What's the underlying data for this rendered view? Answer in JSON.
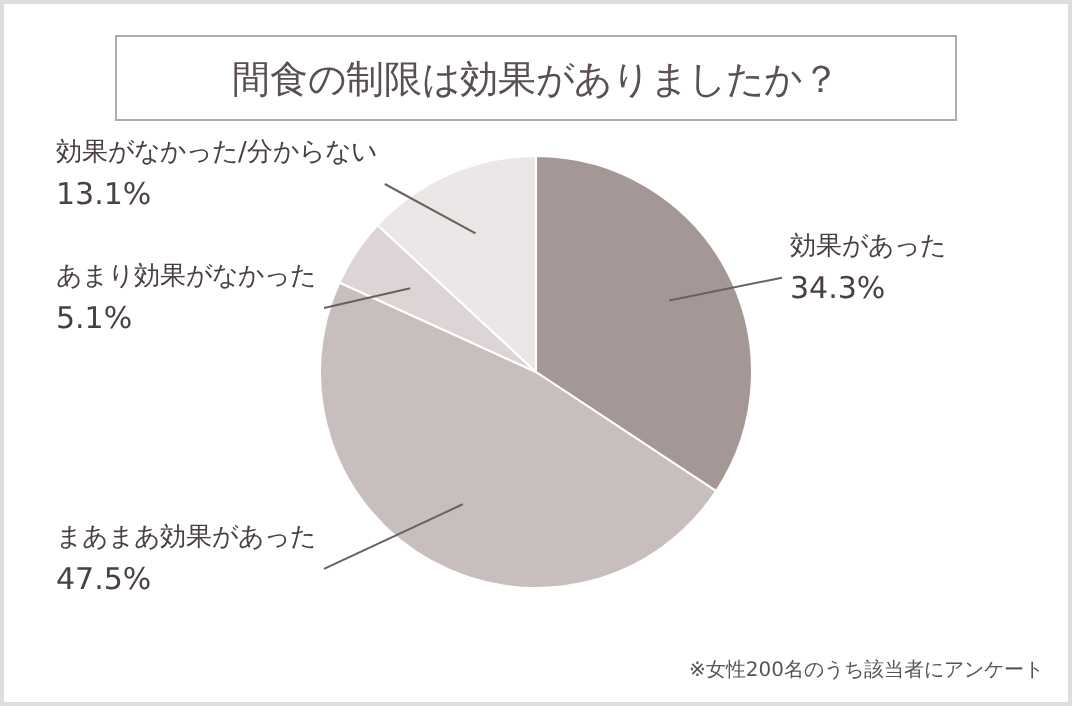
{
  "chart_data": {
    "type": "pie",
    "title": "間食の制限は効果がありましたか？",
    "categories": [
      "効果があった",
      "まあまあ効果があった",
      "あまり効果がなかった",
      "効果がなかった/分からない"
    ],
    "values": [
      34.3,
      47.5,
      5.1,
      13.1
    ],
    "colors": [
      "#a69797",
      "#c9bebe",
      "#ddd5d5",
      "#ece7e7"
    ],
    "value_labels": [
      "34.3%",
      "47.5%",
      "5.1%",
      "13.1%"
    ],
    "annotations": [
      "※女性200名のうち該当者にアンケート"
    ]
  }
}
